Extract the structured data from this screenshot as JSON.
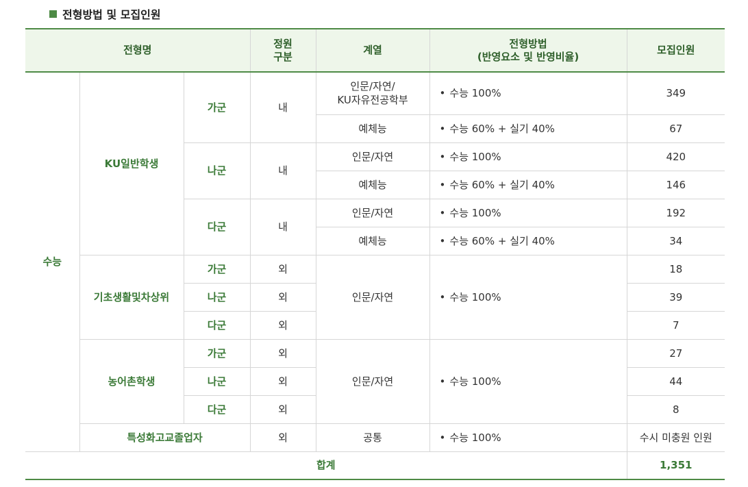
{
  "section_title": "전형방법 및 모집인원",
  "headers": {
    "name": "전형명",
    "quota_line1": "정원",
    "quota_line2": "구분",
    "field": "계열",
    "method_line1": "전형방법",
    "method_line2": "(반영요소 및 반영비율)",
    "count": "모집인원"
  },
  "category": "수능",
  "groups": {
    "general": "KU일반학생",
    "basic": "기초생활및차상위",
    "rural": "농어촌학생",
    "special": "특성화고교졸업자"
  },
  "gun": {
    "ga": "가군",
    "na": "나군",
    "da": "다군"
  },
  "quota": {
    "in": "내",
    "out": "외"
  },
  "fields": {
    "humsci_ku_line1": "인문/자연/",
    "humsci_ku_line2": "KU자유전공학부",
    "humsci": "인문/자연",
    "arts": "예체능",
    "common": "공통"
  },
  "methods": {
    "bullet": "•",
    "suneung100": "수능 100%",
    "suneung60_practical40": "수능 60% + 실기 40%"
  },
  "counts": {
    "general_ga_humsci": "349",
    "general_ga_arts": "67",
    "general_na_humsci": "420",
    "general_na_arts": "146",
    "general_da_humsci": "192",
    "general_da_arts": "34",
    "basic_ga": "18",
    "basic_na": "39",
    "basic_da": "7",
    "rural_ga": "27",
    "rural_na": "44",
    "rural_da": "8",
    "special": "수시 미충원 인원"
  },
  "total_label": "합계",
  "total_value": "1,351",
  "colors": {
    "accent_green": "#4d8a45",
    "header_bg": "#eef6ea",
    "text_green": "#3b7a37"
  }
}
